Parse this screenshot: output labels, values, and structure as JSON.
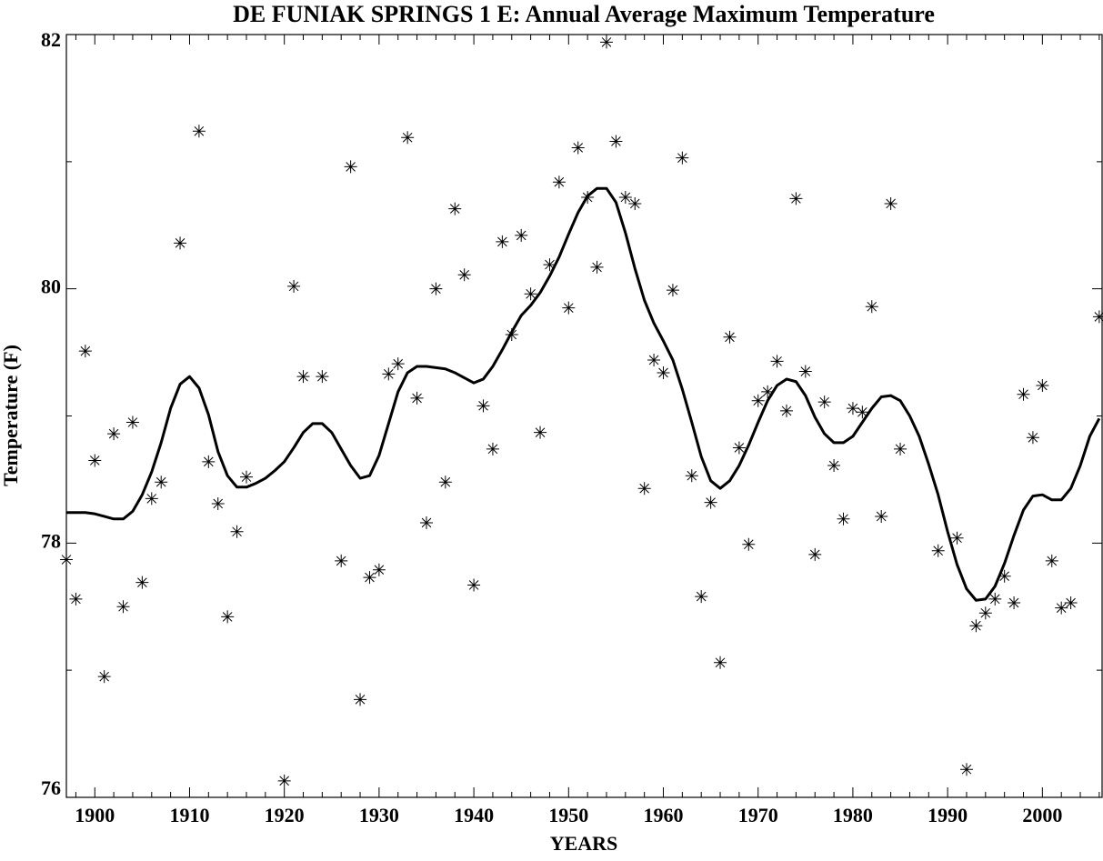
{
  "chart_data": {
    "type": "scatter",
    "title": "DE FUNIAK SPRINGS 1 E: Annual Average Maximum Temperature",
    "x_label": "YEARS",
    "y_label": "Temperature (F)",
    "xlim": [
      1897,
      2006.3
    ],
    "ylim": [
      76,
      82
    ],
    "xticks": [
      1900,
      1910,
      1920,
      1930,
      1940,
      1950,
      1960,
      1970,
      1980,
      1990,
      2000
    ],
    "yticks": [
      76,
      78,
      80,
      82
    ],
    "yminorticks": [
      77,
      79,
      81
    ],
    "xminorticks": [
      1898,
      1902,
      1904,
      1906,
      1908,
      1912,
      1914,
      1916,
      1918,
      1922,
      1924,
      1926,
      1928,
      1932,
      1934,
      1936,
      1938,
      1942,
      1944,
      1946,
      1948,
      1952,
      1954,
      1956,
      1958,
      1962,
      1964,
      1966,
      1968,
      1972,
      1974,
      1976,
      1978,
      1982,
      1984,
      1986,
      1988,
      1992,
      1994,
      1996,
      1998,
      2002,
      2004,
      2006
    ],
    "series": [
      {
        "type": "scatter",
        "color": "#000000",
        "x": [
          1897,
          1898,
          1899,
          1900,
          1901,
          1902,
          1903,
          1904,
          1905,
          1906,
          1907,
          1909,
          1911,
          1912,
          1913,
          1914,
          1915,
          1916,
          1920,
          1921,
          1922,
          1924,
          1926,
          1927,
          1928,
          1929,
          1930,
          1931,
          1932,
          1933,
          1934,
          1935,
          1936,
          1937,
          1938,
          1939,
          1940,
          1941,
          1942,
          1943,
          1944,
          1945,
          1946,
          1947,
          1948,
          1949,
          1950,
          1951,
          1952,
          1953,
          1954,
          1955,
          1956,
          1957,
          1958,
          1959,
          1960,
          1961,
          1962,
          1963,
          1964,
          1965,
          1966,
          1967,
          1968,
          1969,
          1970,
          1971,
          1972,
          1973,
          1974,
          1975,
          1976,
          1977,
          1978,
          1979,
          1980,
          1981,
          1982,
          1983,
          1984,
          1985,
          1989,
          1991,
          1992,
          1993,
          1994,
          1995,
          1996,
          1997,
          1998,
          1999,
          2000,
          2001,
          2002,
          2003,
          2006
        ],
        "values": [
          77.87,
          77.56,
          79.51,
          78.65,
          76.95,
          78.86,
          77.5,
          78.95,
          77.69,
          78.35,
          78.48,
          80.36,
          81.24,
          78.64,
          78.31,
          77.42,
          78.09,
          78.52,
          76.13,
          80.02,
          79.31,
          79.31,
          77.86,
          80.96,
          76.77,
          77.73,
          77.79,
          79.33,
          79.41,
          81.19,
          79.14,
          78.16,
          80.0,
          78.48,
          80.63,
          80.11,
          77.67,
          79.08,
          78.74,
          80.37,
          79.64,
          80.42,
          79.96,
          78.87,
          80.19,
          80.84,
          79.85,
          81.11,
          80.72,
          80.17,
          81.94,
          81.16,
          80.72,
          80.67,
          78.43,
          79.44,
          79.34,
          79.99,
          81.03,
          78.53,
          77.58,
          78.32,
          77.06,
          79.62,
          78.75,
          77.99,
          79.12,
          79.19,
          79.43,
          79.04,
          80.71,
          79.35,
          77.91,
          79.11,
          78.61,
          78.19,
          79.06,
          79.03,
          79.86,
          78.21,
          80.67,
          78.74,
          77.94,
          78.04,
          76.22,
          77.35,
          77.45,
          77.56,
          77.74,
          77.53,
          79.17,
          78.83,
          79.24,
          77.86,
          77.49,
          77.53,
          79.78
        ]
      },
      {
        "type": "line",
        "color": "#000000",
        "x": [
          1897,
          1898,
          1899,
          1900,
          1901,
          1902,
          1903,
          1904,
          1905,
          1906,
          1907,
          1908,
          1909,
          1910,
          1911,
          1912,
          1913,
          1914,
          1915,
          1916,
          1917,
          1918,
          1919,
          1920,
          1921,
          1922,
          1923,
          1924,
          1925,
          1926,
          1927,
          1928,
          1929,
          1930,
          1931,
          1932,
          1933,
          1934,
          1935,
          1936,
          1937,
          1938,
          1939,
          1940,
          1941,
          1942,
          1943,
          1944,
          1945,
          1946,
          1947,
          1948,
          1949,
          1950,
          1951,
          1952,
          1953,
          1954,
          1955,
          1956,
          1957,
          1958,
          1959,
          1960,
          1961,
          1962,
          1963,
          1964,
          1965,
          1966,
          1967,
          1968,
          1969,
          1970,
          1971,
          1972,
          1973,
          1974,
          1975,
          1976,
          1977,
          1978,
          1979,
          1980,
          1981,
          1982,
          1983,
          1984,
          1985,
          1986,
          1987,
          1988,
          1989,
          1990,
          1991,
          1992,
          1993,
          1994,
          1995,
          1996,
          1997,
          1998,
          1999,
          2000,
          2001,
          2002,
          2003,
          2004,
          2005,
          2006
        ],
        "values": [
          78.24,
          78.24,
          78.24,
          78.23,
          78.21,
          78.19,
          78.19,
          78.25,
          78.38,
          78.56,
          78.79,
          79.06,
          79.25,
          79.31,
          79.22,
          79.01,
          78.72,
          78.53,
          78.44,
          78.44,
          78.47,
          78.51,
          78.57,
          78.64,
          78.75,
          78.87,
          78.94,
          78.94,
          78.87,
          78.74,
          78.61,
          78.51,
          78.53,
          78.69,
          78.94,
          79.19,
          79.34,
          79.39,
          79.39,
          79.38,
          79.37,
          79.34,
          79.3,
          79.26,
          79.29,
          79.39,
          79.52,
          79.66,
          79.79,
          79.87,
          79.97,
          80.1,
          80.25,
          80.43,
          80.6,
          80.73,
          80.79,
          80.79,
          80.68,
          80.44,
          80.16,
          79.91,
          79.73,
          79.59,
          79.44,
          79.21,
          78.95,
          78.68,
          78.49,
          78.43,
          78.49,
          78.61,
          78.77,
          78.95,
          79.12,
          79.24,
          79.29,
          79.27,
          79.16,
          78.99,
          78.86,
          78.79,
          78.79,
          78.84,
          78.95,
          79.06,
          79.15,
          79.16,
          79.12,
          79.0,
          78.84,
          78.62,
          78.38,
          78.09,
          77.83,
          77.64,
          77.55,
          77.56,
          77.66,
          77.84,
          78.06,
          78.26,
          78.37,
          78.38,
          78.34,
          78.34,
          78.43,
          78.61,
          78.84,
          78.98
        ]
      }
    ]
  }
}
